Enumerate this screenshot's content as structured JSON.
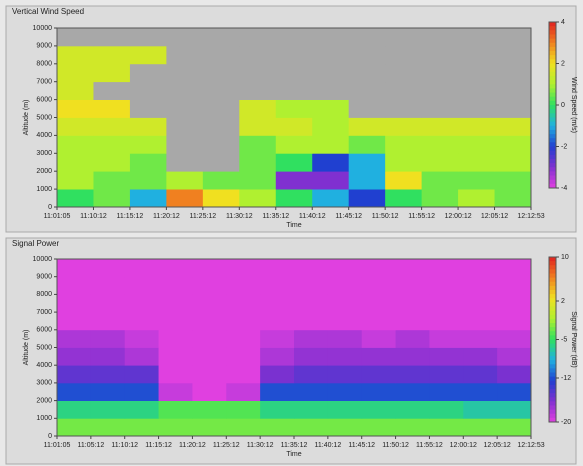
{
  "chart_data": [
    {
      "type": "heatmap",
      "title": "Vertical Wind Speed",
      "xlabel": "Time",
      "ylabel": "Altitude (m)",
      "colorbar_label": "Wind Speed (m/s)",
      "categories": [
        "11:01:05",
        "11:10:12",
        "11:15:12",
        "11:20:12",
        "11:25:12",
        "11:30:12",
        "11:35:12",
        "11:40:12",
        "11:45:12",
        "11:50:12",
        "11:55:12",
        "12:00:12",
        "12:05:12",
        "12:12:53"
      ],
      "ylim": [
        0,
        10000
      ],
      "yticks": [
        0,
        1000,
        2000,
        3000,
        4000,
        5000,
        6000,
        7000,
        8000,
        9000,
        10000
      ],
      "zlim": [
        -4,
        4
      ],
      "zticks": [
        4,
        2,
        0,
        -2,
        -4
      ],
      "colorscale": [
        "#e040e0",
        "#8030d0",
        "#2040d0",
        "#20b0e0",
        "#30e060",
        "#b0f030",
        "#f0e020",
        "#f08020",
        "#e02020"
      ],
      "null_color": "#a8a8a8",
      "z": [
        [
          0,
          0.5,
          -1,
          3,
          2,
          1,
          0,
          -1,
          -2,
          0,
          0.5,
          1,
          0.5
        ],
        [
          1,
          0.5,
          0.5,
          1,
          0.5,
          0.5,
          -3,
          -3,
          -1,
          2,
          0.5,
          0.5,
          0.5
        ],
        [
          1,
          1,
          0.5,
          null,
          null,
          0.5,
          0,
          -2,
          -1,
          1,
          1,
          1,
          1
        ],
        [
          1,
          1,
          1,
          null,
          null,
          0.5,
          1,
          1,
          0.5,
          1,
          1,
          1,
          1
        ],
        [
          1.5,
          1.5,
          1.5,
          null,
          null,
          1.5,
          1.5,
          1,
          1.5,
          1.5,
          1.5,
          1.5,
          1.5
        ],
        [
          2,
          2,
          null,
          null,
          null,
          1.5,
          1,
          1,
          null,
          null,
          null,
          null,
          null
        ],
        [
          1.5,
          null,
          null,
          null,
          null,
          null,
          null,
          null,
          null,
          null,
          null,
          null,
          null
        ],
        [
          1.5,
          1.5,
          null,
          null,
          null,
          null,
          null,
          null,
          null,
          null,
          null,
          null,
          null
        ],
        [
          1.5,
          1.5,
          1.5,
          null,
          null,
          null,
          null,
          null,
          null,
          null,
          null,
          null,
          null
        ],
        [
          null,
          null,
          null,
          null,
          null,
          null,
          null,
          null,
          null,
          null,
          null,
          null,
          null
        ]
      ]
    },
    {
      "type": "heatmap",
      "title": "Signal Power",
      "xlabel": "Time",
      "ylabel": "Altitude (m)",
      "colorbar_label": "Signal Power (dB)",
      "categories": [
        "11:01:05",
        "11:05:12",
        "11:10:12",
        "11:15:12",
        "11:20:12",
        "11:25:12",
        "11:30:12",
        "11:35:12",
        "11:40:12",
        "11:45:12",
        "11:50:12",
        "11:55:12",
        "12:00:12",
        "12:05:12",
        "12:12:53"
      ],
      "ylim": [
        0,
        10000
      ],
      "yticks": [
        0,
        1000,
        2000,
        3000,
        4000,
        5000,
        6000,
        7000,
        8000,
        9000,
        10000
      ],
      "zlim": [
        -20,
        10
      ],
      "zticks": [
        10,
        2,
        -5,
        -12,
        -20
      ],
      "colorscale": [
        "#e040e0",
        "#8030d0",
        "#2040d0",
        "#20b0e0",
        "#30e060",
        "#b0f030",
        "#f0e020",
        "#f08020",
        "#e02020"
      ],
      "null_color": "#a8a8a8",
      "z": [
        [
          -3,
          -3,
          -3,
          -3,
          -3,
          -3,
          -3,
          -3,
          -3,
          -3,
          -3,
          -3,
          -3,
          -3
        ],
        [
          -6,
          -6,
          -6,
          -4,
          -4,
          -4,
          -6,
          -6,
          -6,
          -6,
          -6,
          -6,
          -7,
          -7
        ],
        [
          -12,
          -12,
          -12,
          -19,
          -20,
          -19,
          -12,
          -12,
          -12,
          -12,
          -12,
          -12,
          -12,
          -12
        ],
        [
          -15,
          -15,
          -15,
          -20,
          -20,
          -20,
          -16,
          -15,
          -15,
          -15,
          -15,
          -15,
          -15,
          -16
        ],
        [
          -17,
          -17,
          -18,
          -20,
          -20,
          -20,
          -18,
          -17,
          -17,
          -17,
          -17,
          -17,
          -17,
          -18
        ],
        [
          -18,
          -18,
          -19,
          -20,
          -20,
          -20,
          -19,
          -18,
          -18,
          -19,
          -18,
          -19,
          -19,
          -19
        ],
        [
          -20,
          -20,
          -20,
          -20,
          -20,
          -20,
          -20,
          -20,
          -20,
          -20,
          -20,
          -20,
          -20,
          -20
        ],
        [
          -20,
          -20,
          -20,
          -20,
          -20,
          -20,
          -20,
          -20,
          -20,
          -20,
          -20,
          -20,
          -20,
          -20
        ],
        [
          -20,
          -20,
          -20,
          -20,
          -20,
          -20,
          -20,
          -20,
          -20,
          -20,
          -20,
          -20,
          -20,
          -20
        ],
        [
          -20,
          -20,
          -20,
          -20,
          -20,
          -20,
          -20,
          -20,
          -20,
          -20,
          -20,
          -20,
          -20,
          -20
        ]
      ]
    }
  ]
}
